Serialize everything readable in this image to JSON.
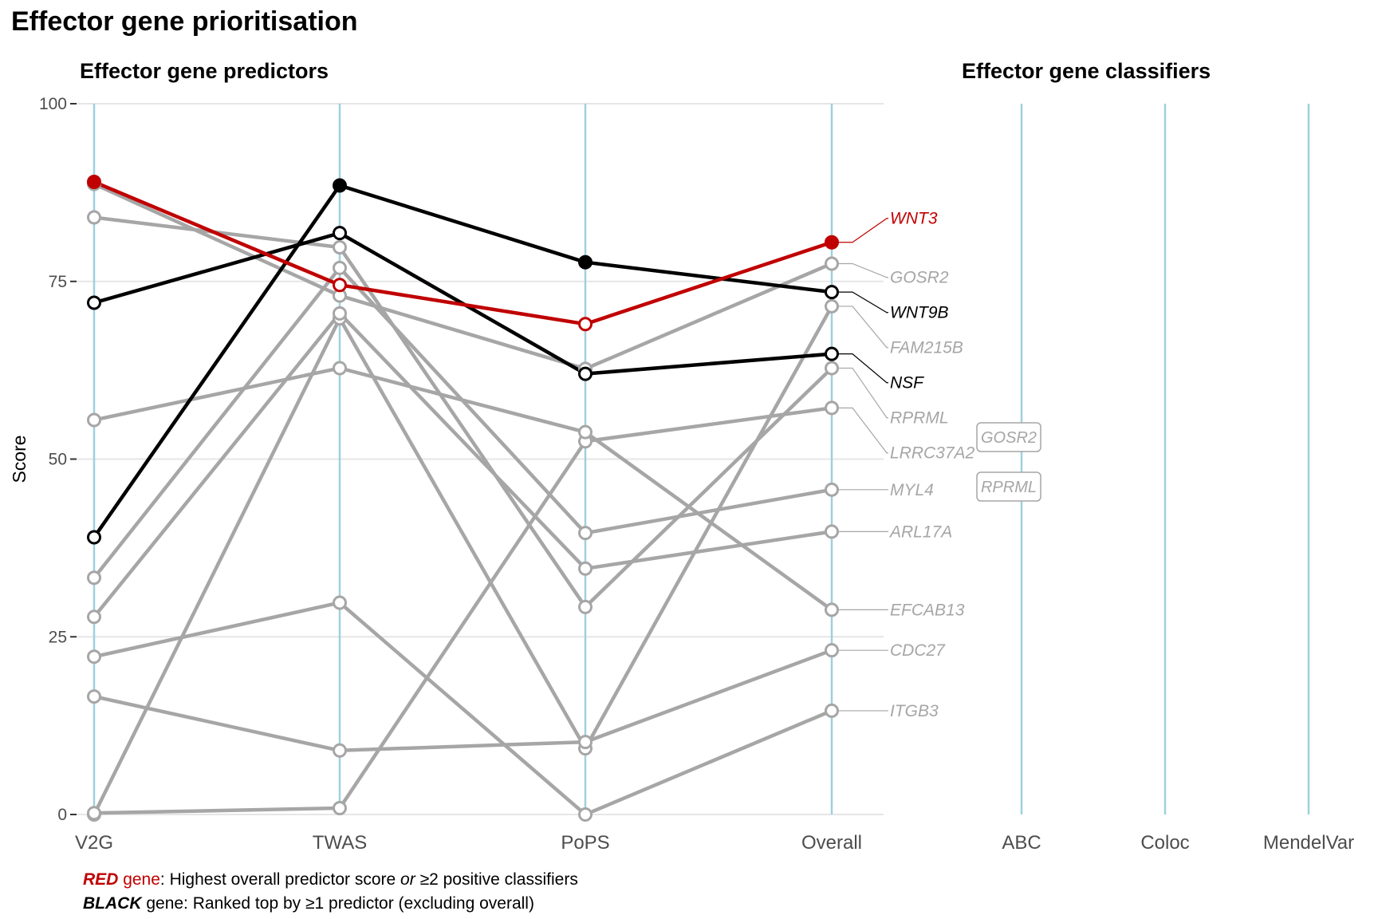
{
  "title": "Effector gene prioritisation",
  "predictors_title": "Effector gene predictors",
  "classifiers_title": "Effector gene classifiers",
  "colors": {
    "red": "#c00000",
    "black": "#000000",
    "grey": "#a6a6a6",
    "axis_line": "#9fd0de",
    "grid": "#e6e6e6"
  },
  "chart_data": {
    "type": "line",
    "ylabel": "Score",
    "ylim": [
      0,
      100
    ],
    "yticks": [
      0,
      25,
      50,
      75,
      100
    ],
    "grid": true,
    "predictor_axes": [
      "V2G",
      "TWAS",
      "PoPS",
      "Overall"
    ],
    "classifier_axes": [
      "ABC",
      "Coloc",
      "MendelVar"
    ],
    "series": [
      {
        "name": "WNT3",
        "group": "red",
        "values": [
          89,
          74.5,
          69,
          80.5
        ]
      },
      {
        "name": "WNT9B",
        "group": "black",
        "values": [
          39,
          88.5,
          77.7,
          73.5
        ]
      },
      {
        "name": "NSF",
        "group": "black",
        "values": [
          72,
          81.8,
          62,
          64.8
        ]
      },
      {
        "name": "GOSR2",
        "group": "grey",
        "values": [
          88.7,
          73,
          62.7,
          77.5
        ]
      },
      {
        "name": "FAM215B",
        "group": "grey",
        "values": [
          0,
          69.8,
          9.3,
          71.5
        ]
      },
      {
        "name": "RPRML",
        "group": "grey",
        "values": [
          84,
          79.8,
          29.2,
          62.8
        ]
      },
      {
        "name": "LRRC37A2",
        "group": "grey",
        "values": [
          0.2,
          0.9,
          52.5,
          57.2
        ]
      },
      {
        "name": "MYL4",
        "group": "grey",
        "values": [
          33.3,
          76.9,
          39.6,
          45.7
        ]
      },
      {
        "name": "ARL17A",
        "group": "grey",
        "values": [
          27.8,
          70.5,
          34.6,
          39.8
        ]
      },
      {
        "name": "EFCAB13",
        "group": "grey",
        "values": [
          55.5,
          62.8,
          53.8,
          28.8
        ]
      },
      {
        "name": "CDC27",
        "group": "grey",
        "values": [
          16.6,
          9,
          10.2,
          23.1
        ]
      },
      {
        "name": "ITGB3",
        "group": "grey",
        "values": [
          22.2,
          29.8,
          0,
          14.6
        ]
      }
    ],
    "overall_labels": [
      {
        "name": "WNT3",
        "group": "red"
      },
      {
        "name": "GOSR2",
        "group": "grey"
      },
      {
        "name": "WNT9B",
        "group": "black"
      },
      {
        "name": "FAM215B",
        "group": "grey"
      },
      {
        "name": "NSF",
        "group": "black"
      },
      {
        "name": "RPRML",
        "group": "grey"
      },
      {
        "name": "LRRC37A2",
        "group": "grey"
      },
      {
        "name": "MYL4",
        "group": "grey"
      },
      {
        "name": "ARL17A",
        "group": "grey"
      },
      {
        "name": "EFCAB13",
        "group": "grey"
      },
      {
        "name": "CDC27",
        "group": "grey"
      },
      {
        "name": "ITGB3",
        "group": "grey"
      }
    ],
    "classifier_labels": [
      {
        "axis": "ABC",
        "name": "GOSR2",
        "group": "grey"
      },
      {
        "axis": "ABC",
        "name": "RPRML",
        "group": "grey"
      }
    ]
  },
  "footnote": {
    "line1_keyword": "RED",
    "line1_word": "gene",
    "line1_text": ": Highest overall predictor score ",
    "line1_or": "or",
    "line1_tail": " ≥2 positive classifiers",
    "line2_keyword": "BLACK",
    "line2_text": " gene: Ranked top by ≥1 predictor (excluding overall)"
  }
}
